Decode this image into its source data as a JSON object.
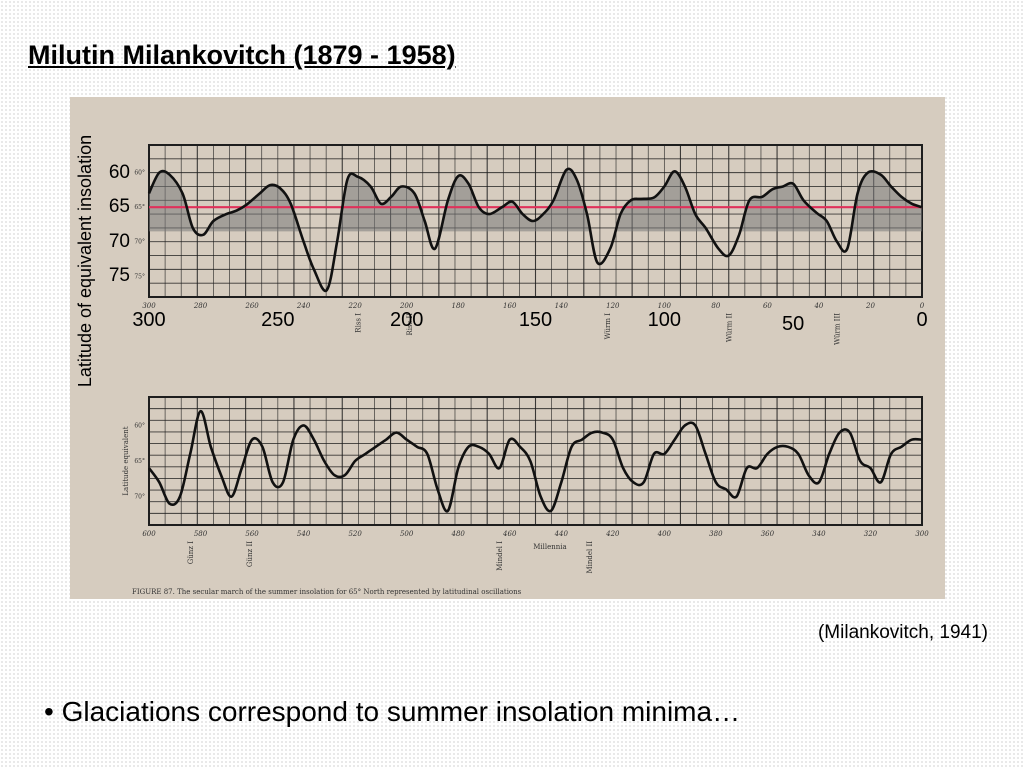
{
  "slide": {
    "title": "Milutin Milankovitch (1879 - 1958)",
    "citation": "(Milankovitch, 1941)",
    "bullet": "• Glaciations correspond to summer insolation minima…"
  },
  "colors": {
    "paper": "#d6ccbf",
    "grid_ink": "#1e1e1e",
    "threshold_line": "#e0305a",
    "trough_shade": "#7a7a7a"
  },
  "scan": {
    "upper_ticks": [
      "300",
      "280",
      "260",
      "240",
      "220",
      "200",
      "180",
      "160",
      "140",
      "120",
      "100",
      "80",
      "60",
      "40",
      "20",
      "0"
    ],
    "upper_labels": [
      "Riss I",
      "Riss II",
      "Würm I",
      "Würm II",
      "Würm III"
    ],
    "lower_ticks": [
      "600",
      "580",
      "560",
      "540",
      "520",
      "500",
      "480",
      "460",
      "440",
      "420",
      "400",
      "380",
      "360",
      "340",
      "320",
      "300"
    ],
    "lower_labels": [
      "Günz I",
      "Günz II",
      "Mindel I",
      "Mindel II"
    ],
    "lower_axis_title": "Millennia",
    "caption": "FIGURE 87. The secular march of the summer insolation for 65° North represented by latitudinal oscillations"
  },
  "chart_data": [
    {
      "type": "line",
      "title": "",
      "ylabel": "Latitude of equivalent insolation",
      "xlabel": "",
      "xlim": [
        300,
        0
      ],
      "ylim": [
        78,
        56
      ],
      "xticks": [
        "300",
        "250",
        "200",
        "150",
        "100",
        "50",
        "0"
      ],
      "yticks": [
        "60",
        "65",
        "70",
        "75"
      ],
      "reference_line": 65,
      "grid": true,
      "series": [
        {
          "x": [
            300,
            296,
            292,
            287,
            283,
            279,
            275,
            270,
            266,
            262,
            257,
            253,
            249,
            245,
            240,
            236,
            231,
            227,
            223,
            219,
            214,
            210,
            206,
            202,
            197,
            193,
            189,
            184,
            180,
            176,
            172,
            168,
            163,
            159,
            155,
            151,
            147,
            143,
            138,
            134,
            130,
            126,
            121,
            117,
            113,
            109,
            104,
            100,
            96,
            92,
            88,
            84,
            79,
            75,
            71,
            67,
            62,
            58,
            54,
            50,
            46,
            41,
            37,
            33,
            29,
            25,
            21,
            16,
            12,
            8,
            4,
            0
          ],
          "y": [
            63,
            60,
            60.3,
            63,
            68,
            69,
            67,
            66,
            65.5,
            64.6,
            63,
            61.8,
            62.3,
            64.5,
            70,
            74,
            77,
            70,
            61,
            60.6,
            62,
            64.5,
            63.5,
            62,
            63,
            67,
            71,
            64,
            60.5,
            61.6,
            65,
            66,
            65,
            64.2,
            66,
            67,
            66,
            64,
            59.6,
            61,
            66,
            73,
            71,
            66,
            64,
            63.8,
            63.6,
            62,
            59.8,
            62,
            66,
            68,
            71,
            72,
            69,
            64,
            63.5,
            62.4,
            62,
            61.6,
            64,
            65.8,
            67,
            70,
            71,
            63,
            60,
            60.3,
            62,
            63.5,
            64.5,
            65
          ]
        }
      ]
    },
    {
      "type": "line",
      "title": "",
      "ylabel": "Latitude equivalent",
      "xlabel": "Millennia",
      "xlim": [
        600,
        300
      ],
      "ylim": [
        74,
        56
      ],
      "xticks": [
        "600",
        "580",
        "560",
        "540",
        "520",
        "500",
        "480",
        "460",
        "440",
        "420",
        "400",
        "380",
        "360",
        "340",
        "320",
        "300"
      ],
      "yticks": [
        "60",
        "65",
        "70"
      ],
      "grid": true,
      "series": [
        {
          "x": [
            600,
            596,
            592,
            588,
            584,
            580,
            576,
            572,
            568,
            564,
            560,
            556,
            552,
            548,
            544,
            540,
            536,
            532,
            528,
            524,
            520,
            516,
            512,
            508,
            504,
            500,
            496,
            492,
            488,
            484,
            480,
            476,
            472,
            468,
            464,
            460,
            456,
            452,
            448,
            444,
            440,
            436,
            432,
            428,
            424,
            420,
            416,
            412,
            408,
            404,
            400,
            396,
            392,
            388,
            384,
            380,
            376,
            372,
            368,
            364,
            360,
            356,
            352,
            348,
            344,
            340,
            336,
            332,
            328,
            324,
            320,
            316,
            312,
            308,
            304,
            300
          ],
          "y": [
            66,
            68,
            71,
            70,
            64,
            58,
            63,
            67,
            70,
            66,
            62,
            63,
            68,
            68,
            62,
            60,
            62,
            65,
            67,
            67,
            65,
            64,
            63,
            62,
            61,
            62,
            63,
            64,
            69,
            72,
            66,
            63,
            63,
            64,
            66,
            62,
            63,
            65,
            70,
            72,
            68,
            63,
            62,
            61,
            61,
            62,
            66,
            68,
            68,
            64,
            64,
            62,
            60,
            60,
            64,
            68,
            69,
            70,
            66,
            66,
            64,
            63,
            63,
            64,
            67,
            68,
            64,
            61,
            61,
            65,
            66,
            68,
            64,
            63,
            62,
            62
          ]
        }
      ]
    }
  ]
}
